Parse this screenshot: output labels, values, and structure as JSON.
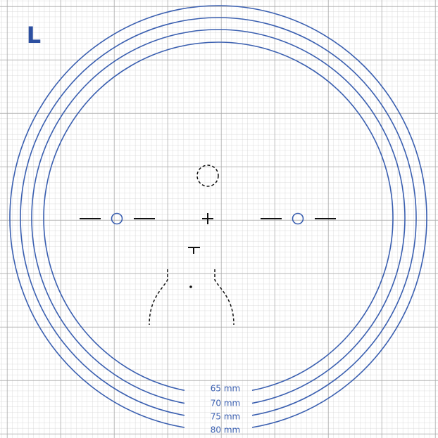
{
  "corner_label": "L",
  "rings": [
    {
      "label": "65 mm"
    },
    {
      "label": "70 mm"
    },
    {
      "label": "75 mm"
    },
    {
      "label": "80 mm"
    }
  ]
}
